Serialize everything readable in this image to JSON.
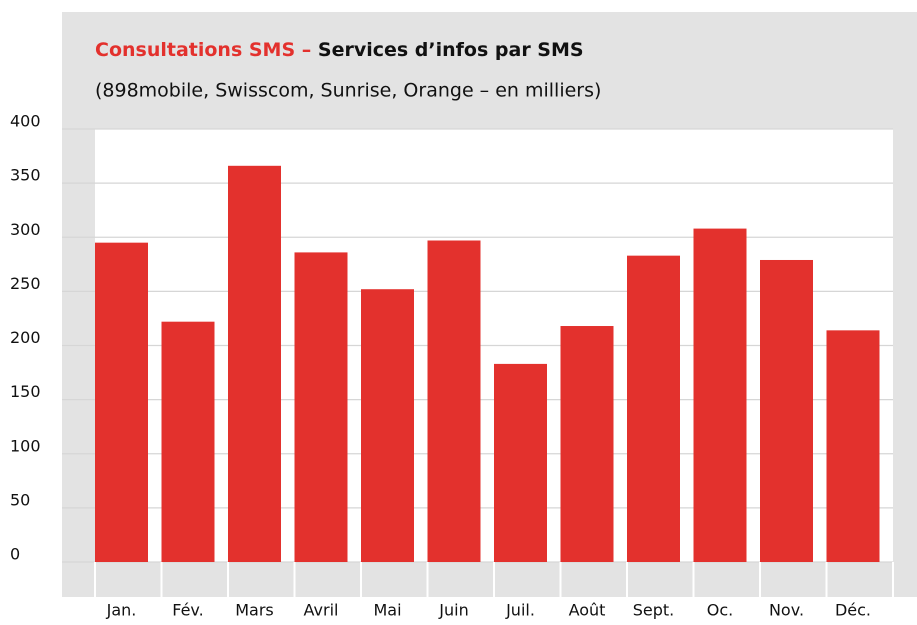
{
  "chart_data": {
    "type": "bar",
    "title": {
      "lead": "Consultations SMS –",
      "main": "Services d’infos par SMS"
    },
    "subtitle": "(898mobile, Swisscom, Sunrise, Orange – en milliers)",
    "categories": [
      "Jan.",
      "Fév.",
      "Mars",
      "Avril",
      "Mai",
      "Juin",
      "Juil.",
      "Août",
      "Sept.",
      "Oc.",
      "Nov.",
      "Déc."
    ],
    "values": [
      295,
      222,
      366,
      286,
      252,
      297,
      183,
      218,
      283,
      308,
      279,
      214
    ],
    "color": "#e3312d",
    "title_color": "#e3312d",
    "ylim": [
      0,
      400
    ],
    "yticks": [
      0,
      50,
      100,
      150,
      200,
      250,
      300,
      350,
      400
    ],
    "grid": true
  }
}
